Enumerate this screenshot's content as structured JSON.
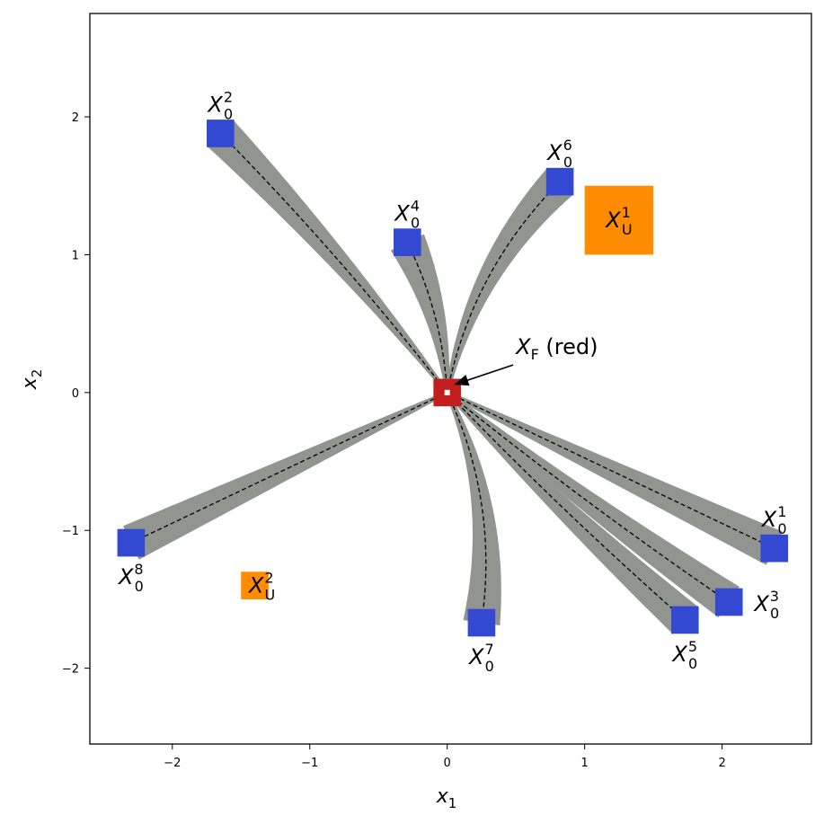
{
  "chart_data": {
    "type": "scatter",
    "title": "",
    "xlabel": "x",
    "xlabel_sub": "1",
    "ylabel": "x",
    "ylabel_sub": "2",
    "xlim": [
      -2.6,
      2.65
    ],
    "ylim": [
      -2.55,
      2.75
    ],
    "xticks": [
      -2,
      -1,
      0,
      1,
      2
    ],
    "yticks": [
      -2,
      -1,
      0,
      1,
      2
    ],
    "grid": false,
    "colors": {
      "initial": "#3349d1",
      "final": "#c1201f",
      "unsafe": "#ff8c00",
      "tube": "#929490",
      "path": "#000000"
    },
    "target": {
      "name": "X_F",
      "label_main": "X",
      "label_sub": "F",
      "label_suffix": " (red)",
      "center": [
        0.0,
        0.0
      ],
      "half_width": 0.1
    },
    "initial_sets": [
      {
        "name": "X_0^1",
        "sup": "1",
        "center": [
          2.38,
          -1.13
        ],
        "half_width": 0.1,
        "bend": 0.0
      },
      {
        "name": "X_0^2",
        "sup": "2",
        "center": [
          -1.65,
          1.88
        ],
        "half_width": 0.1,
        "bend": 0.03
      },
      {
        "name": "X_0^3",
        "sup": "3",
        "center": [
          2.05,
          -1.52
        ],
        "half_width": 0.1,
        "bend": 0.02
      },
      {
        "name": "X_0^4",
        "sup": "4",
        "center": [
          -0.29,
          1.09
        ],
        "half_width": 0.1,
        "bend": 0.1
      },
      {
        "name": "X_0^5",
        "sup": "5",
        "center": [
          1.73,
          -1.65
        ],
        "half_width": 0.1,
        "bend": 0.02
      },
      {
        "name": "X_0^6",
        "sup": "6",
        "center": [
          0.82,
          1.53
        ],
        "half_width": 0.1,
        "bend": -0.15
      },
      {
        "name": "X_0^7",
        "sup": "7",
        "center": [
          0.25,
          -1.67
        ],
        "half_width": 0.1,
        "bend": -0.15
      },
      {
        "name": "X_0^8",
        "sup": "8",
        "center": [
          -2.3,
          -1.09
        ],
        "half_width": 0.1,
        "bend": 0.0
      }
    ],
    "unsafe_sets": [
      {
        "name": "X_U^1",
        "sup": "1",
        "x": [
          1.0,
          1.5
        ],
        "y": [
          1.0,
          1.5
        ]
      },
      {
        "name": "X_U^2",
        "sup": "2",
        "x": [
          -1.5,
          -1.3
        ],
        "y": [
          -1.5,
          -1.3
        ]
      }
    ]
  }
}
